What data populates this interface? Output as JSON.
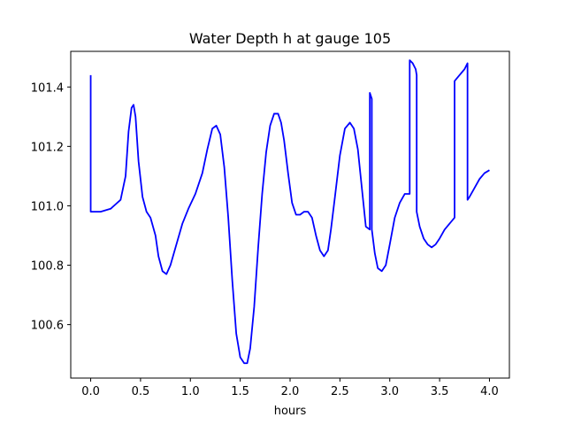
{
  "chart_data": {
    "type": "line",
    "title": "Water Depth h at gauge 105",
    "xlabel": "hours",
    "ylabel": "",
    "xlim": [
      -0.2,
      4.2
    ],
    "ylim": [
      100.42,
      101.52
    ],
    "xticks": [
      "0.0",
      "0.5",
      "1.0",
      "1.5",
      "2.0",
      "2.5",
      "3.0",
      "3.5",
      "4.0"
    ],
    "xtick_values": [
      0.0,
      0.5,
      1.0,
      1.5,
      2.0,
      2.5,
      3.0,
      3.5,
      4.0
    ],
    "yticks": [
      "100.6",
      "100.8",
      "101.0",
      "101.2",
      "101.4"
    ],
    "ytick_values": [
      100.6,
      100.8,
      101.0,
      101.2,
      101.4
    ],
    "grid": false,
    "line_color": "#0000ff",
    "series": [
      {
        "x": [
          0.0,
          0.0,
          0.01,
          0.1,
          0.2,
          0.3,
          0.35,
          0.38,
          0.41,
          0.43,
          0.45,
          0.48,
          0.52,
          0.56,
          0.6,
          0.65,
          0.68,
          0.72,
          0.76,
          0.8,
          0.86,
          0.92,
          0.98,
          1.05,
          1.12,
          1.17,
          1.22,
          1.26,
          1.3,
          1.34,
          1.38,
          1.42,
          1.46,
          1.5,
          1.54,
          1.57,
          1.6,
          1.64,
          1.68,
          1.72,
          1.76,
          1.8,
          1.84,
          1.88,
          1.91,
          1.94,
          1.98,
          2.02,
          2.06,
          2.1,
          2.14,
          2.18,
          2.22,
          2.26,
          2.3,
          2.34,
          2.38,
          2.41,
          2.45,
          2.5,
          2.55,
          2.6,
          2.64,
          2.68,
          2.72,
          2.76,
          2.8,
          2.8,
          2.82,
          2.82,
          2.85,
          2.88,
          2.92,
          2.96,
          3.0,
          3.05,
          3.1,
          3.15,
          3.19,
          3.2,
          3.2,
          3.23,
          3.26,
          3.27,
          3.27,
          3.3,
          3.34,
          3.38,
          3.42,
          3.46,
          3.5,
          3.55,
          3.6,
          3.65,
          3.65,
          3.7,
          3.75,
          3.78,
          3.78,
          3.8,
          3.85,
          3.9,
          3.95,
          4.0
        ],
        "y": [
          101.44,
          100.98,
          100.98,
          100.98,
          100.99,
          101.02,
          101.1,
          101.25,
          101.33,
          101.34,
          101.3,
          101.15,
          101.03,
          100.98,
          100.96,
          100.9,
          100.83,
          100.78,
          100.77,
          100.8,
          100.87,
          100.94,
          100.99,
          101.04,
          101.11,
          101.19,
          101.26,
          101.27,
          101.24,
          101.13,
          100.96,
          100.75,
          100.57,
          100.49,
          100.47,
          100.47,
          100.52,
          100.66,
          100.86,
          101.04,
          101.18,
          101.27,
          101.31,
          101.31,
          101.28,
          101.22,
          101.11,
          101.01,
          100.97,
          100.97,
          100.98,
          100.98,
          100.96,
          100.9,
          100.85,
          100.83,
          100.85,
          100.92,
          101.03,
          101.17,
          101.26,
          101.28,
          101.26,
          101.19,
          101.06,
          100.93,
          100.92,
          101.38,
          101.36,
          100.92,
          100.84,
          100.79,
          100.78,
          100.8,
          100.87,
          100.96,
          101.01,
          101.04,
          101.04,
          101.04,
          101.49,
          101.48,
          101.46,
          101.44,
          100.98,
          100.93,
          100.89,
          100.87,
          100.86,
          100.87,
          100.89,
          100.92,
          100.94,
          100.96,
          101.42,
          101.44,
          101.46,
          101.48,
          101.02,
          101.03,
          101.06,
          101.09,
          101.11,
          101.12
        ]
      }
    ]
  }
}
